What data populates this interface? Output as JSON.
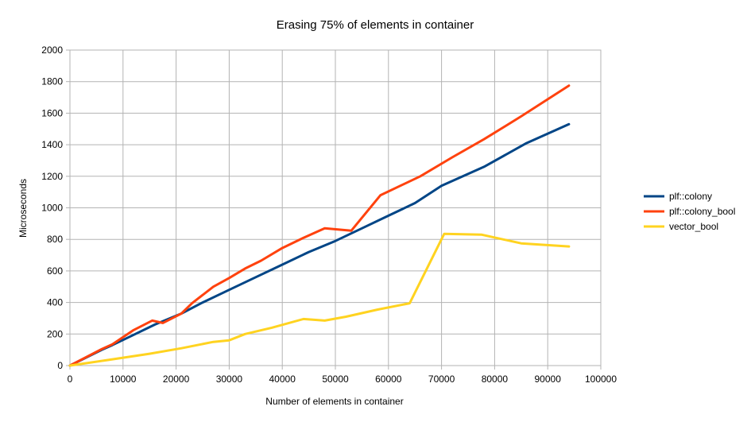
{
  "chart_data": {
    "type": "line",
    "title": "Erasing 75% of elements in container",
    "xlabel": "Number of elements in container",
    "ylabel": "Microseconds",
    "xlim": [
      0,
      100000
    ],
    "ylim": [
      0,
      2000
    ],
    "xticks": [
      0,
      10000,
      20000,
      30000,
      40000,
      50000,
      60000,
      70000,
      80000,
      90000,
      100000
    ],
    "yticks": [
      0,
      200,
      400,
      600,
      800,
      1000,
      1200,
      1400,
      1600,
      1800,
      2000
    ],
    "grid": true,
    "legend": "right",
    "series": [
      {
        "name": "plf::colony",
        "color": "#004586",
        "points": [
          [
            0,
            0
          ],
          [
            6000,
            100
          ],
          [
            8000,
            130
          ],
          [
            12000,
            195
          ],
          [
            16000,
            260
          ],
          [
            21000,
            330
          ],
          [
            25000,
            400
          ],
          [
            30000,
            480
          ],
          [
            35000,
            560
          ],
          [
            40000,
            640
          ],
          [
            45000,
            720
          ],
          [
            50000,
            790
          ],
          [
            55000,
            870
          ],
          [
            60000,
            950
          ],
          [
            65000,
            1030
          ],
          [
            70000,
            1140
          ],
          [
            78000,
            1260
          ],
          [
            86000,
            1410
          ],
          [
            94000,
            1530
          ]
        ]
      },
      {
        "name": "plf::colony_bool",
        "color": "#ff420e",
        "points": [
          [
            0,
            0
          ],
          [
            6000,
            105
          ],
          [
            8000,
            135
          ],
          [
            12000,
            225
          ],
          [
            15500,
            285
          ],
          [
            17500,
            270
          ],
          [
            21000,
            330
          ],
          [
            23000,
            395
          ],
          [
            27000,
            500
          ],
          [
            30000,
            555
          ],
          [
            33000,
            615
          ],
          [
            36000,
            665
          ],
          [
            40000,
            745
          ],
          [
            44000,
            810
          ],
          [
            48000,
            870
          ],
          [
            53000,
            855
          ],
          [
            58500,
            1080
          ],
          [
            66000,
            1200
          ],
          [
            72000,
            1320
          ],
          [
            78000,
            1435
          ],
          [
            85000,
            1580
          ],
          [
            94000,
            1775
          ]
        ]
      },
      {
        "name": "vector_bool",
        "color": "#ffd320",
        "points": [
          [
            0,
            0
          ],
          [
            7000,
            35
          ],
          [
            15000,
            75
          ],
          [
            21000,
            110
          ],
          [
            27000,
            150
          ],
          [
            30000,
            160
          ],
          [
            33000,
            200
          ],
          [
            38000,
            240
          ],
          [
            44000,
            295
          ],
          [
            48000,
            285
          ],
          [
            52000,
            310
          ],
          [
            58000,
            355
          ],
          [
            64000,
            395
          ],
          [
            70500,
            835
          ],
          [
            77500,
            830
          ],
          [
            85000,
            775
          ],
          [
            94000,
            755
          ]
        ]
      }
    ]
  }
}
